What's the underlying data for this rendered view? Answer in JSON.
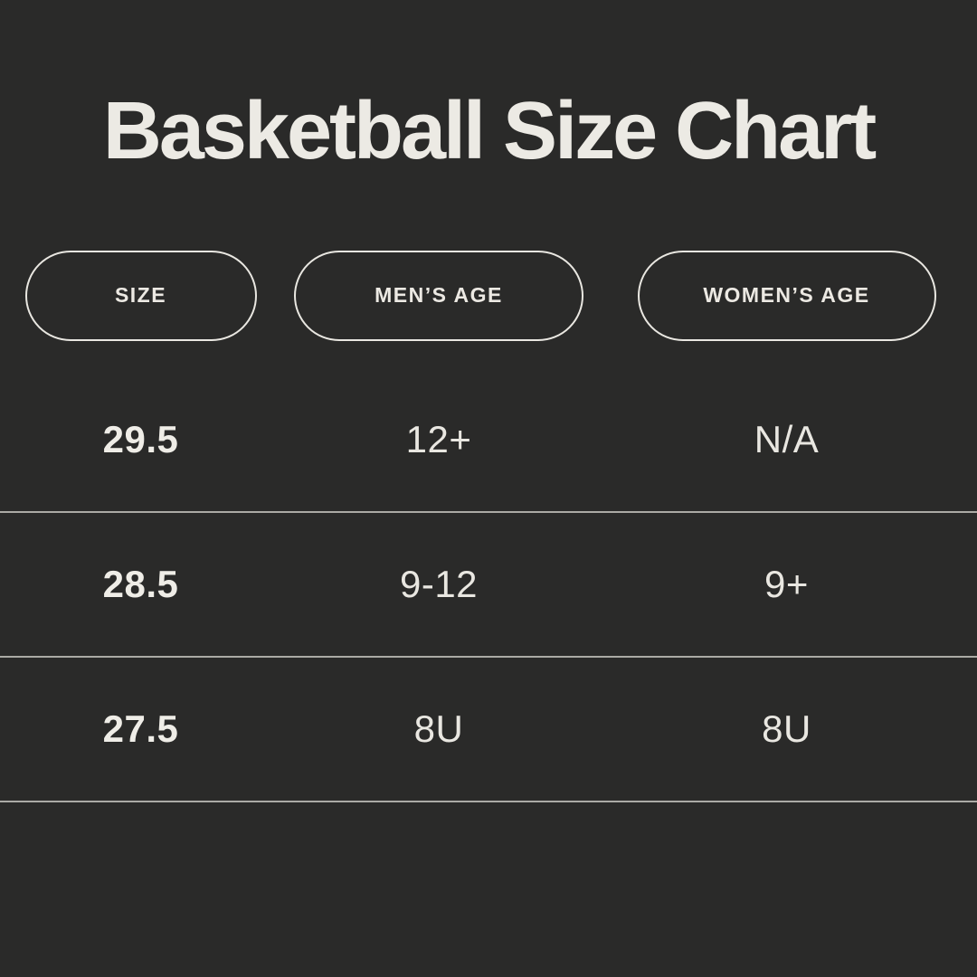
{
  "page": {
    "title": "Basketball Size Chart"
  },
  "chart_data": {
    "type": "table",
    "title": "Basketball Size Chart",
    "columns": [
      "SIZE",
      "MEN’S AGE",
      "WOMEN’S AGE"
    ],
    "rows": [
      [
        "29.5",
        "12+",
        "N/A"
      ],
      [
        "28.5",
        "9-12",
        "9+"
      ],
      [
        "27.5",
        "8U",
        "8U"
      ]
    ],
    "layout": {
      "header_style": "outlined-pill",
      "row_dividers": true,
      "grid": "3-columns"
    }
  },
  "colors": {
    "background": "#2a2a29",
    "text": "#eceae4",
    "pill_border": "#e9e7e1",
    "divider": "#dedcd6"
  }
}
